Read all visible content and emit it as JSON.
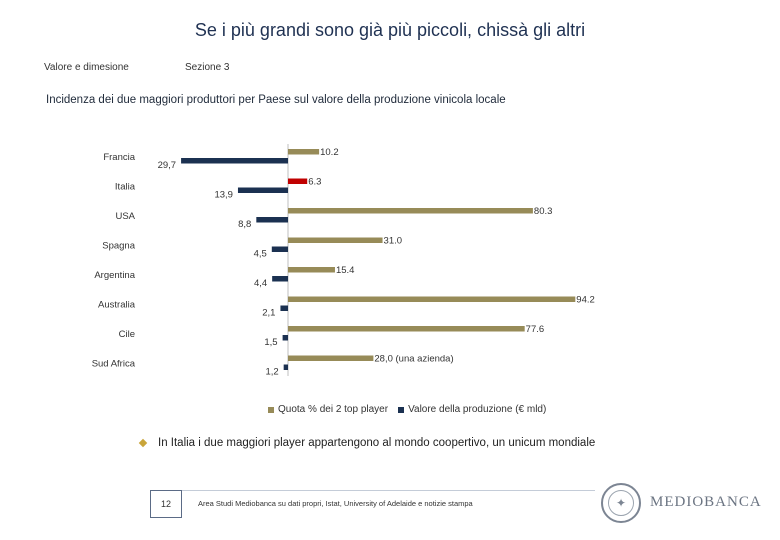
{
  "header": {
    "title": "Se i più grandi sono già più piccoli, chissà gli altri",
    "section_left": "Valore e dimesione",
    "section_right": "Sezione 3",
    "subtitle": "Incidenza dei due maggiori produttori per Paese sul valore della produzione vinicola locale"
  },
  "colors": {
    "quota": "#978b58",
    "valore": "#1b3151",
    "highlight": "#c00000"
  },
  "chart_data": {
    "type": "bar",
    "orientation": "horizontal",
    "categories": [
      "Francia",
      "Italia",
      "USA",
      "Spagna",
      "Argentina",
      "Australia",
      "Cile",
      "Sud Africa"
    ],
    "series": [
      {
        "name": "Quota % dei 2 top player",
        "values": [
          10.2,
          6.3,
          80.3,
          31.0,
          15.4,
          94.2,
          77.6,
          28.0
        ],
        "labels": [
          "10.2",
          "6.3",
          "80.3",
          "31.0",
          "15.4",
          "94.2",
          "77.6",
          "28,0 (una azienda)"
        ]
      },
      {
        "name": "Valore della produzione (€ mld)",
        "values": [
          29.7,
          13.9,
          8.8,
          4.5,
          4.4,
          2.1,
          1.5,
          1.2
        ],
        "labels": [
          "29,7",
          "13,9",
          "8,8",
          "4,5",
          "4,4",
          "2,1",
          "1,5",
          "1,2"
        ]
      }
    ],
    "highlight_category": "Italia",
    "legend": [
      "Quota % dei 2 top player",
      "Valore della produzione (€ mld)"
    ],
    "legend_position": "bottom"
  },
  "note": {
    "text": "In Italia i due maggiori player appartengono al mondo coopertivo, un unicum mondiale"
  },
  "footer": {
    "page_number": "12",
    "source": "Area Studi Mediobanca su dati propri, Istat, University of Adelaide e notizie stampa",
    "brand": "MEDIOBANCA"
  }
}
